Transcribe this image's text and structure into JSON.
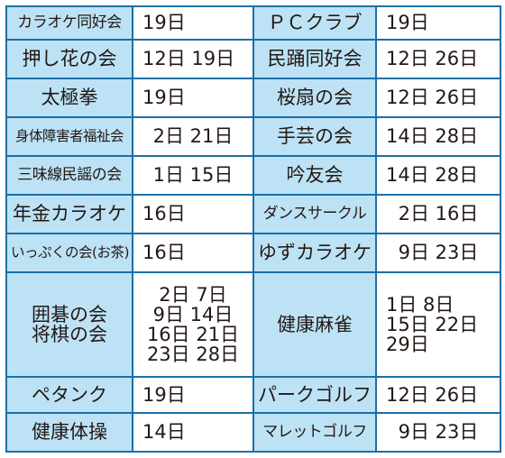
{
  "rows": [
    {
      "left": {
        "club": "カラオケ同好会",
        "days": "19日"
      },
      "right": {
        "club": "ＰＣクラブ",
        "days": "19日"
      }
    },
    {
      "left": {
        "club": "押し花の会",
        "days": "12日 19日"
      },
      "right": {
        "club": "民踊同好会",
        "days": "12日 26日"
      }
    },
    {
      "left": {
        "club": "太極拳",
        "days": "19日"
      },
      "right": {
        "club": "桜扇の会",
        "days": "12日 26日"
      }
    },
    {
      "left": {
        "club": "身体障害者福祉会",
        "days": "2日 21日"
      },
      "right": {
        "club": "手芸の会",
        "days": "14日 28日"
      }
    },
    {
      "left": {
        "club": "三味線民謡の会",
        "days": "1日 15日"
      },
      "right": {
        "club": "吟友会",
        "days": "14日 28日"
      }
    },
    {
      "left": {
        "club": "年金カラオケ",
        "days": "16日"
      },
      "right": {
        "club": "ダンスサークル",
        "days": "2日 16日"
      }
    },
    {
      "left": {
        "club": "いっぷくの会(お茶)",
        "days": "16日"
      },
      "right": {
        "club": "ゆずカラオケ",
        "days": "9日 23日"
      }
    },
    {
      "left": {
        "club_lines": [
          "囲碁の会",
          "将棋の会"
        ],
        "days_lines": [
          "2日 7日",
          "9日 14日",
          "16日 21日",
          "23日 28日"
        ]
      },
      "right": {
        "club": "健康麻雀",
        "days_lines": [
          "1日 8日",
          "15日 22日",
          "29日"
        ]
      }
    },
    {
      "left": {
        "club": "ペタンク",
        "days": "19日"
      },
      "right": {
        "club": "パークゴルフ",
        "days": "12日 26日"
      }
    },
    {
      "left": {
        "club": "健康体操",
        "days": "14日"
      },
      "right": {
        "club": "マレットゴルフ",
        "days": "9日 23日"
      }
    }
  ],
  "colors": {
    "name_cell_bg": "#bde2f5",
    "border": "#1b6fa8",
    "text": "#231815"
  }
}
